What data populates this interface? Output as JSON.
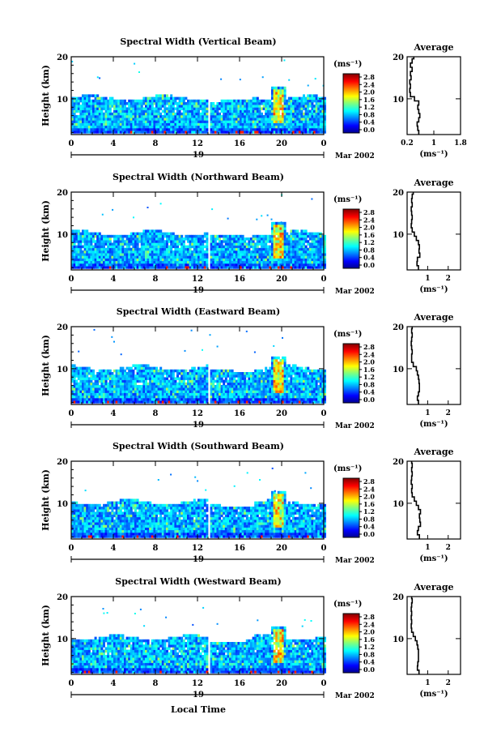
{
  "figure": {
    "xlabel": "Local Time",
    "colorbar_unit": "(ms⁻¹)",
    "average_title": "Average",
    "date_left": "19",
    "date_right": "Mar 2002"
  },
  "chart_data": [
    {
      "type": "heatmap",
      "title": "Spectral Width (Vertical Beam)",
      "ylabel": "Height (km)",
      "xlabel": "Local Time",
      "x_ticks": [
        "0",
        "4",
        "8",
        "12",
        "16",
        "20",
        "0"
      ],
      "x_range": [
        0,
        24
      ],
      "y_ticks": [
        "20",
        "10"
      ],
      "y_range": [
        1.5,
        20
      ],
      "data_gap_hours": [
        12.8,
        13.1
      ],
      "colorbar": {
        "label": "(ms⁻¹)",
        "ticks": [
          "2.8",
          "2.4",
          "2.0",
          "1.6",
          "1.2",
          "0.8",
          "0.4",
          "0.0"
        ],
        "range": [
          0,
          2.8
        ]
      },
      "typical_echo_top_km": 10,
      "convective_event_hour": 19.5,
      "average_profile": {
        "xlabel": "(ms⁻¹)",
        "x_ticks": [
          "0.2",
          "1",
          "1.8"
        ],
        "x_range": [
          0.2,
          1.8
        ],
        "height_km": [
          2,
          3,
          4,
          5,
          6,
          7,
          8,
          9,
          10,
          11,
          12,
          13,
          14,
          15,
          16,
          17,
          18,
          19,
          20
        ],
        "values": [
          0.55,
          0.52,
          0.5,
          0.55,
          0.58,
          0.55,
          0.52,
          0.55,
          0.42,
          0.3,
          0.28,
          0.3,
          0.28,
          0.32,
          0.3,
          0.35,
          0.3,
          0.35,
          0.4
        ]
      }
    },
    {
      "type": "heatmap",
      "title": "Spectral Width (Northward Beam)",
      "ylabel": "Height (km)",
      "xlabel": "Local Time",
      "x_ticks": [
        "0",
        "4",
        "8",
        "12",
        "16",
        "20",
        "0"
      ],
      "x_range": [
        0,
        24
      ],
      "y_ticks": [
        "20",
        "10"
      ],
      "y_range": [
        1.5,
        20
      ],
      "data_gap_hours": [
        12.8,
        13.1
      ],
      "colorbar": {
        "label": "(ms⁻¹)",
        "ticks": [
          "2.8",
          "2.4",
          "2.0",
          "1.6",
          "1.2",
          "0.8",
          "0.4",
          "0.0"
        ],
        "range": [
          0,
          2.8
        ]
      },
      "typical_echo_top_km": 10,
      "convective_event_hour": 19.5,
      "average_profile": {
        "xlabel": "(ms⁻¹)",
        "x_ticks": [
          "1",
          "2"
        ],
        "x_range": [
          0,
          2.6
        ],
        "height_km": [
          2,
          3,
          4,
          5,
          6,
          7,
          8,
          9,
          10,
          11,
          12,
          13,
          14,
          15,
          16,
          17,
          18,
          19,
          20
        ],
        "values": [
          0.55,
          0.48,
          0.5,
          0.62,
          0.58,
          0.6,
          0.55,
          0.45,
          0.35,
          0.25,
          0.2,
          0.22,
          0.25,
          0.22,
          0.2,
          0.25,
          0.22,
          0.25,
          0.3
        ]
      }
    },
    {
      "type": "heatmap",
      "title": "Spectral Width (Eastward Beam)",
      "ylabel": "Height (km)",
      "xlabel": "Local Time",
      "x_ticks": [
        "0",
        "4",
        "8",
        "12",
        "16",
        "20",
        "0"
      ],
      "x_range": [
        0,
        24
      ],
      "y_ticks": [
        "20",
        "10"
      ],
      "y_range": [
        1.5,
        20
      ],
      "data_gap_hours": [
        12.8,
        13.1
      ],
      "colorbar": {
        "label": "(ms⁻¹)",
        "ticks": [
          "2.8",
          "2.4",
          "2.0",
          "1.6",
          "1.2",
          "0.8",
          "0.4",
          "0.0"
        ],
        "range": [
          0,
          2.8
        ]
      },
      "typical_echo_top_km": 10,
      "convective_event_hour": 19.5,
      "average_profile": {
        "xlabel": "(ms⁻¹)",
        "x_ticks": [
          "1",
          "2"
        ],
        "x_range": [
          0,
          2.6
        ],
        "height_km": [
          2,
          3,
          4,
          5,
          6,
          7,
          8,
          9,
          10,
          11,
          12,
          13,
          14,
          15,
          16,
          17,
          18,
          19,
          20
        ],
        "values": [
          0.55,
          0.5,
          0.55,
          0.6,
          0.6,
          0.58,
          0.55,
          0.5,
          0.45,
          0.3,
          0.22,
          0.22,
          0.25,
          0.22,
          0.2,
          0.22,
          0.25,
          0.22,
          0.25
        ]
      }
    },
    {
      "type": "heatmap",
      "title": "Spectral Width (Southward Beam)",
      "ylabel": "Height (km)",
      "xlabel": "Local Time",
      "x_ticks": [
        "0",
        "4",
        "8",
        "12",
        "16",
        "20",
        "0"
      ],
      "x_range": [
        0,
        24
      ],
      "y_ticks": [
        "20",
        "10"
      ],
      "y_range": [
        1.5,
        20
      ],
      "data_gap_hours": [
        12.8,
        13.1
      ],
      "colorbar": {
        "label": "(ms⁻¹)",
        "ticks": [
          "2.8",
          "2.4",
          "2.0",
          "1.6",
          "1.2",
          "0.8",
          "0.4",
          "0.0"
        ],
        "range": [
          0,
          2.8
        ]
      },
      "typical_echo_top_km": 10,
      "convective_event_hour": 19.5,
      "average_profile": {
        "xlabel": "(ms⁻¹)",
        "x_ticks": [
          "1",
          "2"
        ],
        "x_range": [
          0,
          2.6
        ],
        "height_km": [
          2,
          3,
          4,
          5,
          6,
          7,
          8,
          9,
          10,
          11,
          12,
          13,
          14,
          15,
          16,
          17,
          18,
          19,
          20
        ],
        "values": [
          0.6,
          0.5,
          0.55,
          0.65,
          0.62,
          0.6,
          0.65,
          0.55,
          0.45,
          0.35,
          0.25,
          0.22,
          0.25,
          0.2,
          0.22,
          0.25,
          0.22,
          0.25,
          0.22
        ]
      }
    },
    {
      "type": "heatmap",
      "title": "Spectral Width (Westward Beam)",
      "ylabel": "Height (km)",
      "xlabel": "Local Time",
      "x_ticks": [
        "0",
        "4",
        "8",
        "12",
        "16",
        "20",
        "0"
      ],
      "x_range": [
        0,
        24
      ],
      "y_ticks": [
        "20",
        "10"
      ],
      "y_range": [
        1.5,
        20
      ],
      "data_gap_hours": [
        12.8,
        13.1
      ],
      "colorbar": {
        "label": "(ms⁻¹)",
        "ticks": [
          "2.8",
          "2.4",
          "2.0",
          "1.6",
          "1.2",
          "0.8",
          "0.4",
          "0.0"
        ],
        "range": [
          0,
          2.8
        ]
      },
      "typical_echo_top_km": 10,
      "convective_event_hour": 19.5,
      "average_profile": {
        "xlabel": "(ms⁻¹)",
        "x_ticks": [
          "1",
          "2"
        ],
        "x_range": [
          0,
          2.6
        ],
        "height_km": [
          2,
          3,
          4,
          5,
          6,
          7,
          8,
          9,
          10,
          11,
          12,
          13,
          14,
          15,
          16,
          17,
          18,
          19,
          20
        ],
        "values": [
          0.58,
          0.5,
          0.52,
          0.55,
          0.55,
          0.55,
          0.52,
          0.48,
          0.4,
          0.3,
          0.22,
          0.2,
          0.22,
          0.2,
          0.22,
          0.2,
          0.22,
          0.25,
          0.22
        ]
      }
    }
  ]
}
